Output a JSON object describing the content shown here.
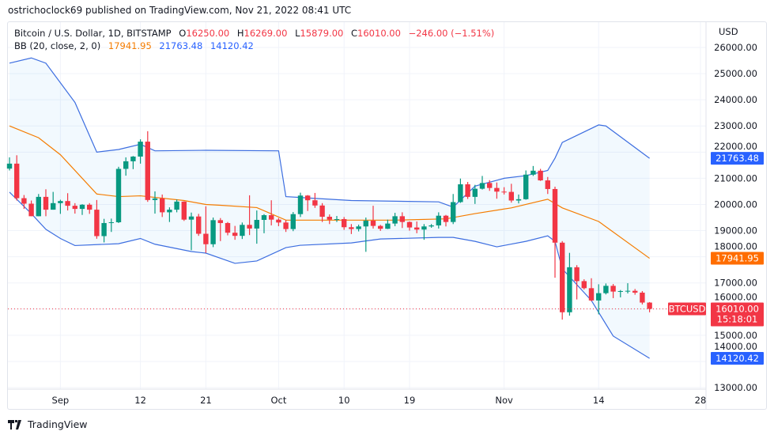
{
  "header": {
    "published": "ostrichoclock69 published on TradingView.com, Nov 21, 2022 08:41 UTC"
  },
  "legend": {
    "symbol": "Bitcoin / U.S. Dollar, 1D, BITSTAMP",
    "o_label": "O",
    "o": "16250.00",
    "h_label": "H",
    "h": "16269.00",
    "l_label": "L",
    "l": "15879.00",
    "c_label": "C",
    "c": "16010.00",
    "change": "−246.00 (−1.51%)",
    "bb_label": "BB (20, close, 2, 0)",
    "bb_basis": "17941.95",
    "bb_upper": "21763.48",
    "bb_lower": "14120.42"
  },
  "price_axis": {
    "currency": "USD",
    "ticks": [
      "26000.00",
      "25000.00",
      "24000.00",
      "23000.00",
      "22000.00",
      "21000.00",
      "20000.00",
      "19000.00",
      "18000.00",
      "17000.00",
      "16000.00",
      "15000.00",
      "14000.00",
      "13000.00"
    ],
    "last_price": "16010.00",
    "countdown": "15:18:01",
    "symbol_tag": "BTCUSD",
    "upper_tag": "21763.48",
    "basis_tag": "17941.95",
    "lower_tag": "14120.42"
  },
  "footer": {
    "brand": "TradingView"
  },
  "colors": {
    "up": "#089981",
    "down": "#f23645",
    "band": "#3d6ee0",
    "basis": "#f57c00",
    "band_fill": "#2196f3"
  },
  "chart_data": {
    "type": "candlestick",
    "ylim": [
      13000,
      26000
    ],
    "grid": true,
    "x_ticks": [
      {
        "date": "2022-09-01",
        "label": "Sep"
      },
      {
        "date": "2022-09-12",
        "label": "12"
      },
      {
        "date": "2022-09-21",
        "label": "21"
      },
      {
        "date": "2022-10-01",
        "label": "Oct"
      },
      {
        "date": "2022-10-10",
        "label": "10"
      },
      {
        "date": "2022-10-19",
        "label": "19"
      },
      {
        "date": "2022-11-01",
        "label": "Nov"
      },
      {
        "date": "2022-11-14",
        "label": "14"
      },
      {
        "date": "2022-11-28",
        "label": "28"
      }
    ],
    "y_ticks": [
      13000,
      14000,
      15000,
      16000,
      17000,
      18000,
      19000,
      20000,
      21000,
      22000,
      23000,
      24000,
      25000,
      26000
    ],
    "candles_columns": [
      "date",
      "open",
      "high",
      "low",
      "close"
    ],
    "candles": [
      [
        "2022-08-25",
        21370,
        21800,
        21300,
        21560
      ],
      [
        "2022-08-26",
        21560,
        21880,
        20150,
        20240
      ],
      [
        "2022-08-27",
        20240,
        20360,
        19830,
        20030
      ],
      [
        "2022-08-28",
        20030,
        20150,
        19550,
        19550
      ],
      [
        "2022-08-29",
        19550,
        20400,
        19550,
        20290
      ],
      [
        "2022-08-30",
        20290,
        20580,
        19550,
        19800
      ],
      [
        "2022-08-31",
        19800,
        20480,
        19800,
        20050
      ],
      [
        "2022-09-01",
        20050,
        20180,
        19640,
        20130
      ],
      [
        "2022-09-02",
        20130,
        20430,
        19770,
        19950
      ],
      [
        "2022-09-03",
        19950,
        20050,
        19650,
        19830
      ],
      [
        "2022-09-04",
        19830,
        20010,
        19600,
        19990
      ],
      [
        "2022-09-05",
        19990,
        20050,
        19640,
        19800
      ],
      [
        "2022-09-06",
        19800,
        20170,
        18690,
        18790
      ],
      [
        "2022-09-07",
        18790,
        19450,
        18550,
        19290
      ],
      [
        "2022-09-08",
        19290,
        19460,
        18950,
        19320
      ],
      [
        "2022-09-09",
        19320,
        21440,
        19290,
        21360
      ],
      [
        "2022-09-10",
        21360,
        21800,
        21100,
        21650
      ],
      [
        "2022-09-11",
        21650,
        21850,
        21350,
        21830
      ],
      [
        "2022-09-12",
        21830,
        22490,
        21560,
        22400
      ],
      [
        "2022-09-13",
        22400,
        22800,
        20100,
        20170
      ],
      [
        "2022-09-14",
        20170,
        20500,
        19650,
        20230
      ],
      [
        "2022-09-15",
        20230,
        20380,
        19520,
        19700
      ],
      [
        "2022-09-16",
        19700,
        19890,
        19330,
        19800
      ],
      [
        "2022-09-17",
        19800,
        20190,
        19700,
        20110
      ],
      [
        "2022-09-18",
        20110,
        20120,
        19370,
        19420
      ],
      [
        "2022-09-19",
        19420,
        19690,
        18250,
        19540
      ],
      [
        "2022-09-20",
        19540,
        19640,
        18800,
        18880
      ],
      [
        "2022-09-21",
        18880,
        19930,
        18150,
        18480
      ],
      [
        "2022-09-22",
        18480,
        19500,
        18370,
        19400
      ],
      [
        "2022-09-23",
        19400,
        19480,
        18600,
        19290
      ],
      [
        "2022-09-24",
        19290,
        19330,
        18820,
        18920
      ],
      [
        "2022-09-25",
        18920,
        19180,
        18650,
        18800
      ],
      [
        "2022-09-26",
        18800,
        19310,
        18680,
        19220
      ],
      [
        "2022-09-27",
        19220,
        20350,
        18830,
        19080
      ],
      [
        "2022-09-28",
        19080,
        19770,
        18500,
        19410
      ],
      [
        "2022-09-29",
        19410,
        19630,
        18900,
        19590
      ],
      [
        "2022-09-30",
        19590,
        20160,
        19200,
        19420
      ],
      [
        "2022-10-01",
        19420,
        19480,
        19170,
        19310
      ],
      [
        "2022-10-02",
        19310,
        19400,
        18950,
        19060
      ],
      [
        "2022-10-03",
        19060,
        19710,
        18980,
        19630
      ],
      [
        "2022-10-04",
        19630,
        20450,
        19520,
        20340
      ],
      [
        "2022-10-05",
        20340,
        20360,
        19750,
        20160
      ],
      [
        "2022-10-06",
        20160,
        20440,
        19870,
        19960
      ],
      [
        "2022-10-07",
        19960,
        20050,
        19330,
        19530
      ],
      [
        "2022-10-08",
        19530,
        19620,
        19250,
        19420
      ],
      [
        "2022-10-09",
        19420,
        19560,
        19330,
        19440
      ],
      [
        "2022-10-10",
        19440,
        19520,
        19030,
        19130
      ],
      [
        "2022-10-11",
        19130,
        19250,
        18870,
        19060
      ],
      [
        "2022-10-12",
        19060,
        19230,
        18970,
        19160
      ],
      [
        "2022-10-13",
        19160,
        19500,
        18190,
        19380
      ],
      [
        "2022-10-14",
        19380,
        19950,
        19080,
        19180
      ],
      [
        "2022-10-15",
        19180,
        19220,
        18990,
        19070
      ],
      [
        "2022-10-16",
        19070,
        19420,
        19060,
        19270
      ],
      [
        "2022-10-17",
        19270,
        19680,
        19170,
        19550
      ],
      [
        "2022-10-18",
        19550,
        19700,
        19100,
        19330
      ],
      [
        "2022-10-19",
        19330,
        19350,
        19000,
        19120
      ],
      [
        "2022-10-20",
        19120,
        19350,
        18900,
        19040
      ],
      [
        "2022-10-21",
        19040,
        19250,
        18650,
        19160
      ],
      [
        "2022-10-22",
        19160,
        19250,
        19110,
        19200
      ],
      [
        "2022-10-23",
        19200,
        19700,
        19080,
        19570
      ],
      [
        "2022-10-24",
        19570,
        19600,
        19160,
        19330
      ],
      [
        "2022-10-25",
        19330,
        20400,
        19250,
        20090
      ],
      [
        "2022-10-26",
        20090,
        20990,
        20060,
        20770
      ],
      [
        "2022-10-27",
        20770,
        20860,
        20210,
        20290
      ],
      [
        "2022-10-28",
        20290,
        20750,
        20020,
        20600
      ],
      [
        "2022-10-29",
        20600,
        21090,
        20570,
        20820
      ],
      [
        "2022-10-30",
        20820,
        20930,
        20520,
        20630
      ],
      [
        "2022-10-31",
        20630,
        20840,
        20220,
        20490
      ],
      [
        "2022-11-01",
        20490,
        20660,
        20380,
        20480
      ],
      [
        "2022-11-02",
        20480,
        20790,
        20070,
        20150
      ],
      [
        "2022-11-03",
        20150,
        20380,
        20040,
        20200
      ],
      [
        "2022-11-04",
        20200,
        21300,
        20180,
        21140
      ],
      [
        "2022-11-05",
        21140,
        21470,
        21090,
        21290
      ],
      [
        "2022-11-06",
        21290,
        21360,
        20900,
        20920
      ],
      [
        "2022-11-07",
        20920,
        21050,
        20400,
        20590
      ],
      [
        "2022-11-08",
        20590,
        20680,
        17200,
        18540
      ],
      [
        "2022-11-09",
        18540,
        18600,
        15600,
        15880
      ],
      [
        "2022-11-10",
        15880,
        18150,
        15750,
        17600
      ],
      [
        "2022-11-11",
        17600,
        17680,
        16370,
        17070
      ],
      [
        "2022-11-12",
        17070,
        17140,
        16750,
        16800
      ],
      [
        "2022-11-13",
        16800,
        17180,
        16300,
        16330
      ],
      [
        "2022-11-14",
        16330,
        16950,
        15800,
        16610
      ],
      [
        "2022-11-15",
        16610,
        16980,
        16560,
        16890
      ],
      [
        "2022-11-16",
        16890,
        16960,
        16420,
        16670
      ],
      [
        "2022-11-17",
        16670,
        16730,
        16450,
        16690
      ],
      [
        "2022-11-18",
        16690,
        16990,
        16600,
        16700
      ],
      [
        "2022-11-19",
        16700,
        16770,
        16550,
        16630
      ],
      [
        "2022-11-20",
        16630,
        16690,
        16180,
        16250
      ],
      [
        "2022-11-21",
        16250,
        16269,
        15879,
        16010
      ]
    ],
    "bollinger": {
      "upper": [
        [
          "2022-08-25",
          25400
        ],
        [
          "2022-08-28",
          25600
        ],
        [
          "2022-08-30",
          25400
        ],
        [
          "2022-09-03",
          23900
        ],
        [
          "2022-09-06",
          22000
        ],
        [
          "2022-09-09",
          22100
        ],
        [
          "2022-09-12",
          22300
        ],
        [
          "2022-09-14",
          22050
        ],
        [
          "2022-09-21",
          22070
        ],
        [
          "2022-10-01",
          22050
        ],
        [
          "2022-10-02",
          20300
        ],
        [
          "2022-10-11",
          20150
        ],
        [
          "2022-10-23",
          20100
        ],
        [
          "2022-10-25",
          19900
        ],
        [
          "2022-10-28",
          20700
        ],
        [
          "2022-11-01",
          21000
        ],
        [
          "2022-11-04",
          21100
        ],
        [
          "2022-11-07",
          21300
        ],
        [
          "2022-11-08",
          21770
        ],
        [
          "2022-11-09",
          22370
        ],
        [
          "2022-11-14",
          23040
        ],
        [
          "2022-11-15",
          23000
        ],
        [
          "2022-11-21",
          21763.48
        ]
      ],
      "basis": [
        [
          "2022-08-25",
          23000
        ],
        [
          "2022-08-29",
          22550
        ],
        [
          "2022-09-01",
          21900
        ],
        [
          "2022-09-06",
          20400
        ],
        [
          "2022-09-09",
          20300
        ],
        [
          "2022-09-12",
          20330
        ],
        [
          "2022-09-18",
          20150
        ],
        [
          "2022-09-21",
          20000
        ],
        [
          "2022-09-23",
          19970
        ],
        [
          "2022-09-28",
          19880
        ],
        [
          "2022-10-02",
          19400
        ],
        [
          "2022-10-17",
          19400
        ],
        [
          "2022-10-24",
          19450
        ],
        [
          "2022-10-28",
          19650
        ],
        [
          "2022-11-02",
          19870
        ],
        [
          "2022-11-07",
          20200
        ],
        [
          "2022-11-09",
          19870
        ],
        [
          "2022-11-14",
          19350
        ],
        [
          "2022-11-21",
          17941.95
        ]
      ],
      "lower": [
        [
          "2022-08-25",
          20470
        ],
        [
          "2022-08-28",
          19650
        ],
        [
          "2022-08-30",
          19050
        ],
        [
          "2022-09-01",
          18700
        ],
        [
          "2022-09-03",
          18430
        ],
        [
          "2022-09-09",
          18500
        ],
        [
          "2022-09-12",
          18700
        ],
        [
          "2022-09-14",
          18480
        ],
        [
          "2022-09-19",
          18200
        ],
        [
          "2022-09-21",
          18140
        ],
        [
          "2022-09-25",
          17750
        ],
        [
          "2022-09-28",
          17840
        ],
        [
          "2022-10-02",
          18350
        ],
        [
          "2022-10-04",
          18440
        ],
        [
          "2022-10-11",
          18530
        ],
        [
          "2022-10-15",
          18680
        ],
        [
          "2022-10-23",
          18740
        ],
        [
          "2022-10-25",
          18740
        ],
        [
          "2022-10-28",
          18590
        ],
        [
          "2022-10-31",
          18380
        ],
        [
          "2022-11-04",
          18590
        ],
        [
          "2022-11-07",
          18800
        ],
        [
          "2022-11-08",
          18590
        ],
        [
          "2022-11-09",
          17540
        ],
        [
          "2022-11-13",
          16330
        ],
        [
          "2022-11-16",
          14970
        ],
        [
          "2022-11-21",
          14120.42
        ]
      ]
    }
  }
}
